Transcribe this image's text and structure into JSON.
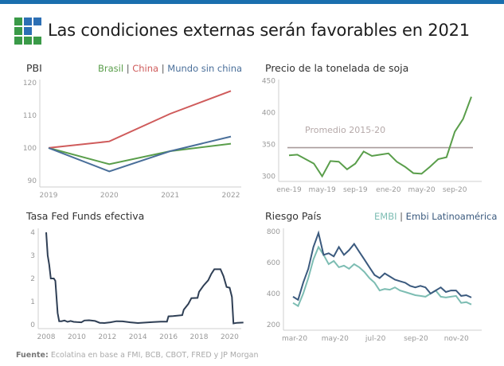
{
  "header": {
    "title": "Las condiciones externas serán favorables en 2021",
    "accent_color": "#1a6fae",
    "logo_icon": "grid-logo-icon"
  },
  "source": {
    "label": "Fuente:",
    "text": "Ecolatina en base a FMI, BCB, CBOT, FRED y JP Morgan"
  },
  "chart_data": [
    {
      "id": "pbi",
      "type": "line",
      "title": "PBI",
      "legend_placement": "top-right",
      "x": [
        "2019",
        "2020",
        "2021",
        "2022"
      ],
      "xticks": [
        "2019",
        "2020",
        "2021",
        "2022"
      ],
      "yticks": [
        90,
        100,
        110,
        120
      ],
      "ylim": [
        88,
        121
      ],
      "series": [
        {
          "name": "Brasil",
          "color": "#5a9e4b",
          "values": [
            100,
            95,
            99,
            101.3
          ]
        },
        {
          "name": "China",
          "color": "#cf5b5b",
          "values": [
            100,
            102,
            110.5,
            117.5
          ]
        },
        {
          "name": "Mundo sin china",
          "color": "#4a6f9a",
          "values": [
            100,
            92.8,
            99,
            103.5
          ]
        }
      ]
    },
    {
      "id": "soja",
      "type": "line",
      "title": "Precio de la tonelada de soja",
      "xticks": [
        "ene-19",
        "may-19",
        "sep-19",
        "ene-20",
        "may-20",
        "sep-20"
      ],
      "xtick_index": [
        0,
        4,
        8,
        12,
        16,
        20
      ],
      "yticks": [
        300,
        350,
        400,
        450
      ],
      "ylim": [
        292,
        452
      ],
      "x": [
        "ene-19",
        "feb-19",
        "mar-19",
        "abr-19",
        "may-19",
        "jun-19",
        "jul-19",
        "ago-19",
        "sep-19",
        "oct-19",
        "nov-19",
        "dic-19",
        "ene-20",
        "feb-20",
        "mar-20",
        "abr-20",
        "may-20",
        "jun-20",
        "jul-20",
        "ago-20",
        "sep-20",
        "oct-20",
        "nov-20"
      ],
      "series": [
        {
          "name": "Soja",
          "color": "#5a9e4b",
          "values": [
            333,
            334,
            327,
            320,
            300,
            324,
            323,
            311,
            320,
            339,
            332,
            334,
            336,
            323,
            315,
            305,
            304,
            315,
            327,
            330,
            370,
            390,
            425
          ]
        }
      ],
      "reference_line": {
        "label": "Promedio 2015-20",
        "value": 345,
        "color": "#a89a9a"
      }
    },
    {
      "id": "fed",
      "type": "line",
      "title": "Tasa Fed Funds efectiva",
      "xticks": [
        "2008",
        "2010",
        "2012",
        "2014",
        "2016",
        "2018",
        "2020"
      ],
      "xlim": [
        2007.9,
        2021.0
      ],
      "yticks": [
        0,
        1,
        2,
        3,
        4
      ],
      "ylim": [
        -0.1,
        4.2
      ],
      "series": [
        {
          "name": "Fed Funds",
          "color": "#2f3f55",
          "points": [
            [
              2008.0,
              4.0
            ],
            [
              2008.1,
              3.0
            ],
            [
              2008.2,
              2.6
            ],
            [
              2008.3,
              2.0
            ],
            [
              2008.5,
              2.0
            ],
            [
              2008.6,
              1.9
            ],
            [
              2008.75,
              0.5
            ],
            [
              2008.85,
              0.15
            ],
            [
              2009.0,
              0.15
            ],
            [
              2009.2,
              0.18
            ],
            [
              2009.4,
              0.12
            ],
            [
              2009.6,
              0.16
            ],
            [
              2009.8,
              0.12
            ],
            [
              2010.0,
              0.11
            ],
            [
              2010.3,
              0.1
            ],
            [
              2010.5,
              0.18
            ],
            [
              2010.8,
              0.19
            ],
            [
              2011.2,
              0.16
            ],
            [
              2011.5,
              0.08
            ],
            [
              2011.8,
              0.07
            ],
            [
              2012.2,
              0.1
            ],
            [
              2012.6,
              0.15
            ],
            [
              2013.0,
              0.14
            ],
            [
              2013.5,
              0.1
            ],
            [
              2014.0,
              0.07
            ],
            [
              2014.5,
              0.09
            ],
            [
              2015.0,
              0.11
            ],
            [
              2015.5,
              0.13
            ],
            [
              2015.9,
              0.13
            ],
            [
              2016.0,
              0.36
            ],
            [
              2016.3,
              0.37
            ],
            [
              2016.9,
              0.41
            ],
            [
              2017.0,
              0.65
            ],
            [
              2017.3,
              0.9
            ],
            [
              2017.5,
              1.15
            ],
            [
              2017.9,
              1.16
            ],
            [
              2018.0,
              1.42
            ],
            [
              2018.3,
              1.7
            ],
            [
              2018.6,
              1.92
            ],
            [
              2018.8,
              2.2
            ],
            [
              2019.0,
              2.4
            ],
            [
              2019.4,
              2.4
            ],
            [
              2019.6,
              2.1
            ],
            [
              2019.8,
              1.63
            ],
            [
              2020.0,
              1.6
            ],
            [
              2020.15,
              1.2
            ],
            [
              2020.25,
              0.05
            ],
            [
              2020.5,
              0.08
            ],
            [
              2020.9,
              0.09
            ]
          ]
        }
      ]
    },
    {
      "id": "riesgo",
      "type": "line",
      "title": "Riesgo País",
      "legend_placement": "top-right",
      "xticks": [
        "mar-20",
        "may-20",
        "jul-20",
        "sep-20",
        "nov-20"
      ],
      "xtick_index": [
        0,
        8,
        16,
        24,
        32
      ],
      "yticks": [
        200,
        400,
        600,
        800
      ],
      "ylim": [
        185,
        830
      ],
      "series": [
        {
          "name": "EMBI",
          "color": "#7dbdb3",
          "values": [
            340,
            320,
            400,
            500,
            620,
            700,
            650,
            590,
            610,
            570,
            580,
            560,
            590,
            570,
            540,
            500,
            470,
            420,
            430,
            425,
            440,
            420,
            410,
            400,
            390,
            385,
            380,
            400,
            420,
            380,
            375,
            380,
            385,
            340,
            345,
            330
          ]
        },
        {
          "name": "Embi Latinoamérica",
          "color": "#3b5a7e",
          "values": [
            380,
            360,
            470,
            560,
            700,
            790,
            650,
            660,
            640,
            700,
            650,
            680,
            720,
            670,
            620,
            570,
            520,
            500,
            530,
            510,
            490,
            480,
            470,
            450,
            440,
            450,
            440,
            400,
            420,
            440,
            410,
            420,
            420,
            385,
            390,
            375
          ]
        }
      ]
    }
  ]
}
